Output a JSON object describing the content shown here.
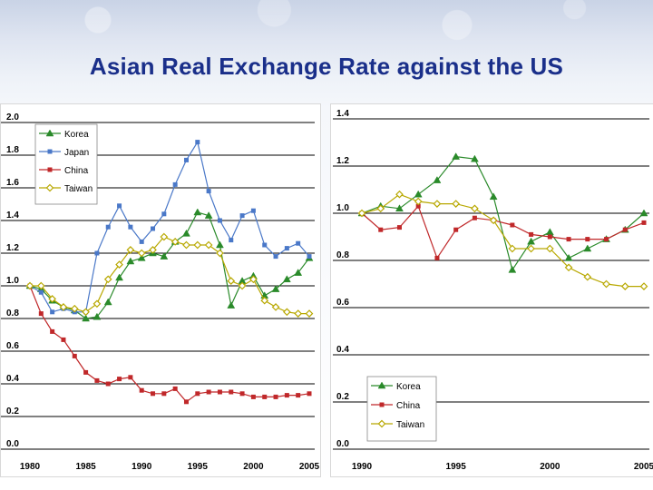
{
  "slide": {
    "title": "Asian Real Exchange Rate against the US"
  },
  "chart_data": [
    {
      "type": "line",
      "title": "",
      "xlabel": "",
      "ylabel": "",
      "x": [
        1980,
        1981,
        1982,
        1983,
        1984,
        1985,
        1986,
        1987,
        1988,
        1989,
        1990,
        1991,
        1992,
        1993,
        1994,
        1995,
        1996,
        1997,
        1998,
        1999,
        2000,
        2001,
        2002,
        2003,
        2004,
        2005
      ],
      "xlim": [
        1980,
        2005
      ],
      "ylim": [
        0.0,
        2.0
      ],
      "x_ticks": [
        "1980",
        "1985",
        "1990",
        "1995",
        "2000",
        "2005"
      ],
      "x_tick_values": [
        1980,
        1985,
        1990,
        1995,
        2000,
        2005
      ],
      "y_ticks": [
        "0.0",
        "0.2",
        "0.4",
        "0.6",
        "0.8",
        "1.0",
        "1.2",
        "1.4",
        "1.6",
        "1.8",
        "2.0"
      ],
      "y_tick_values": [
        0.0,
        0.2,
        0.4,
        0.6,
        0.8,
        1.0,
        1.2,
        1.4,
        1.6,
        1.8,
        2.0
      ],
      "grid": "horizontal",
      "legend_position": "top-left",
      "series": [
        {
          "name": "Korea",
          "color": "#2a8a2a",
          "marker": "triangle",
          "values": [
            1.0,
            0.98,
            0.91,
            0.87,
            0.85,
            0.8,
            0.81,
            0.9,
            1.05,
            1.15,
            1.17,
            1.2,
            1.18,
            1.27,
            1.32,
            1.45,
            1.43,
            1.25,
            0.88,
            1.03,
            1.06,
            0.94,
            0.98,
            1.04,
            1.08,
            1.17
          ]
        },
        {
          "name": "Japan",
          "color": "#4a78c8",
          "marker": "square",
          "values": [
            1.0,
            0.96,
            0.84,
            0.86,
            0.84,
            0.84,
            1.2,
            1.36,
            1.49,
            1.36,
            1.27,
            1.35,
            1.44,
            1.62,
            1.77,
            1.88,
            1.58,
            1.4,
            1.28,
            1.43,
            1.46,
            1.25,
            1.18,
            1.23,
            1.26,
            1.18
          ]
        },
        {
          "name": "China",
          "color": "#c0282a",
          "marker": "square",
          "values": [
            1.0,
            0.83,
            0.72,
            0.67,
            0.57,
            0.47,
            0.42,
            0.4,
            0.43,
            0.44,
            0.36,
            0.34,
            0.34,
            0.37,
            0.29,
            0.34,
            0.35,
            0.35,
            0.35,
            0.34,
            0.32,
            0.32,
            0.32,
            0.33,
            0.33,
            0.34
          ]
        },
        {
          "name": "Taiwan",
          "color": "#b8a800",
          "marker": "diamond",
          "values": [
            1.0,
            1.0,
            0.92,
            0.87,
            0.86,
            0.84,
            0.89,
            1.04,
            1.13,
            1.22,
            1.2,
            1.22,
            1.3,
            1.27,
            1.25,
            1.25,
            1.25,
            1.2,
            1.03,
            1.0,
            1.04,
            0.91,
            0.87,
            0.84,
            0.83,
            0.83
          ]
        }
      ]
    },
    {
      "type": "line",
      "title": "",
      "xlabel": "",
      "ylabel": "",
      "x": [
        1990,
        1991,
        1992,
        1993,
        1994,
        1995,
        1996,
        1997,
        1998,
        1999,
        2000,
        2001,
        2002,
        2003,
        2004,
        2005
      ],
      "xlim": [
        1990,
        2005
      ],
      "ylim": [
        0.0,
        1.4
      ],
      "x_ticks": [
        "1990",
        "1995",
        "2000",
        "2005"
      ],
      "x_tick_values": [
        1990,
        1995,
        2000,
        2005
      ],
      "y_ticks": [
        "0.0",
        "0.2",
        "0.4",
        "0.6",
        "0.8",
        "1.0",
        "1.2",
        "1.4"
      ],
      "y_tick_values": [
        0.0,
        0.2,
        0.4,
        0.6,
        0.8,
        1.0,
        1.2,
        1.4
      ],
      "grid": "horizontal",
      "legend_position": "bottom-left",
      "series": [
        {
          "name": "Korea",
          "color": "#2a8a2a",
          "marker": "triangle",
          "values": [
            1.0,
            1.03,
            1.02,
            1.08,
            1.14,
            1.24,
            1.23,
            1.07,
            0.76,
            0.88,
            0.92,
            0.81,
            0.85,
            0.89,
            0.93,
            1.0
          ]
        },
        {
          "name": "China",
          "color": "#c0282a",
          "marker": "square",
          "values": [
            1.0,
            0.93,
            0.94,
            1.03,
            0.81,
            0.93,
            0.98,
            0.97,
            0.95,
            0.91,
            0.9,
            0.89,
            0.89,
            0.89,
            0.93,
            0.96
          ]
        },
        {
          "name": "Taiwan",
          "color": "#b8a800",
          "marker": "diamond",
          "values": [
            1.0,
            1.02,
            1.08,
            1.05,
            1.04,
            1.04,
            1.02,
            0.97,
            0.85,
            0.85,
            0.85,
            0.77,
            0.73,
            0.7,
            0.69,
            0.69
          ]
        }
      ]
    }
  ]
}
